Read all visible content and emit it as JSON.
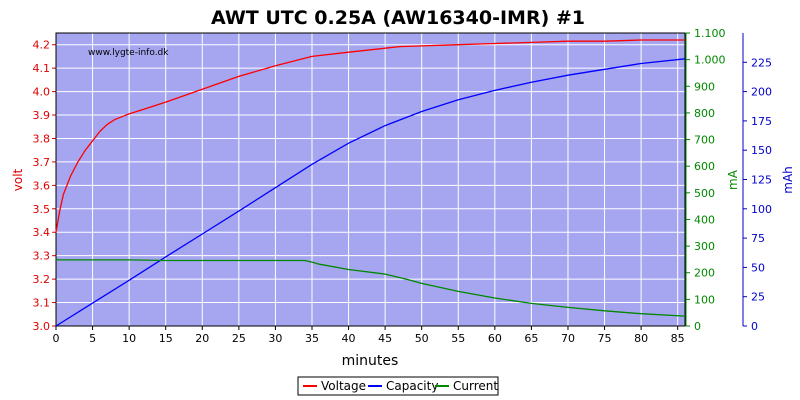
{
  "chart_data": {
    "type": "line",
    "title": "AWT UTC 0.25A (AW16340-IMR) #1",
    "watermark": "www.lygte-info.dk",
    "xlabel": "minutes",
    "xlim": [
      0,
      86
    ],
    "x_ticks": [
      "0",
      "5",
      "10",
      "15",
      "20",
      "25",
      "30",
      "35",
      "40",
      "45",
      "50",
      "55",
      "60",
      "65",
      "70",
      "75",
      "80",
      "85"
    ],
    "plot_background": "#a5a5f0",
    "grid": true,
    "legend_position": "bottom-center",
    "axes": {
      "left": {
        "label": "volt",
        "color": "#dd0000",
        "ylim": [
          3.0,
          4.25
        ],
        "ticks": [
          "3.0",
          "3.1",
          "3.2",
          "3.3",
          "3.4",
          "3.5",
          "3.6",
          "3.7",
          "3.8",
          "3.9",
          "4.0",
          "4.1",
          "4.2"
        ]
      },
      "right1": {
        "label": "mA",
        "color": "#008800",
        "ylim": [
          0,
          1100
        ],
        "ticks": [
          "0",
          "100",
          "200",
          "300",
          "400",
          "500",
          "600",
          "700",
          "800",
          "900",
          "1.000",
          "1.100"
        ]
      },
      "right2": {
        "label": "mAh",
        "color": "#0000cc",
        "ylim": [
          0,
          250
        ],
        "ticks": [
          "0",
          "25",
          "50",
          "75",
          "100",
          "125",
          "150",
          "175",
          "200",
          "225"
        ]
      }
    },
    "series": [
      {
        "name": "Voltage",
        "axis": "left",
        "color": "#ff0000",
        "x": [
          0,
          0.5,
          1,
          2,
          3,
          4,
          5,
          6,
          7,
          8,
          10,
          12,
          15,
          20,
          25,
          30,
          35,
          40,
          45,
          47,
          50,
          55,
          60,
          65,
          70,
          75,
          80,
          86
        ],
        "y": [
          3.4,
          3.49,
          3.56,
          3.64,
          3.7,
          3.75,
          3.79,
          3.83,
          3.86,
          3.88,
          3.905,
          3.925,
          3.955,
          4.01,
          4.065,
          4.11,
          4.15,
          4.168,
          4.185,
          4.192,
          4.195,
          4.2,
          4.205,
          4.21,
          4.215,
          4.215,
          4.22,
          4.22
        ]
      },
      {
        "name": "Capacity",
        "axis": "right2",
        "color": "#0000ff",
        "x": [
          0,
          5,
          10,
          15,
          20,
          25,
          30,
          35,
          40,
          45,
          50,
          55,
          60,
          65,
          70,
          75,
          80,
          86
        ],
        "y": [
          0,
          19.5,
          39,
          59,
          78.5,
          98,
          118,
          138,
          156,
          171,
          183,
          193,
          201,
          208,
          214,
          219,
          224,
          228
        ]
      },
      {
        "name": "Current",
        "axis": "right1",
        "color": "#008800",
        "x": [
          0,
          0.3,
          5,
          10,
          15,
          20,
          25,
          30,
          34,
          35,
          36,
          40,
          45,
          48,
          50,
          55,
          60,
          65,
          70,
          75,
          80,
          86
        ],
        "y": [
          252,
          248,
          248,
          248,
          246,
          246,
          246,
          246,
          246,
          240,
          232,
          212,
          195,
          175,
          160,
          130,
          105,
          85,
          70,
          57,
          46,
          37
        ]
      }
    ]
  }
}
